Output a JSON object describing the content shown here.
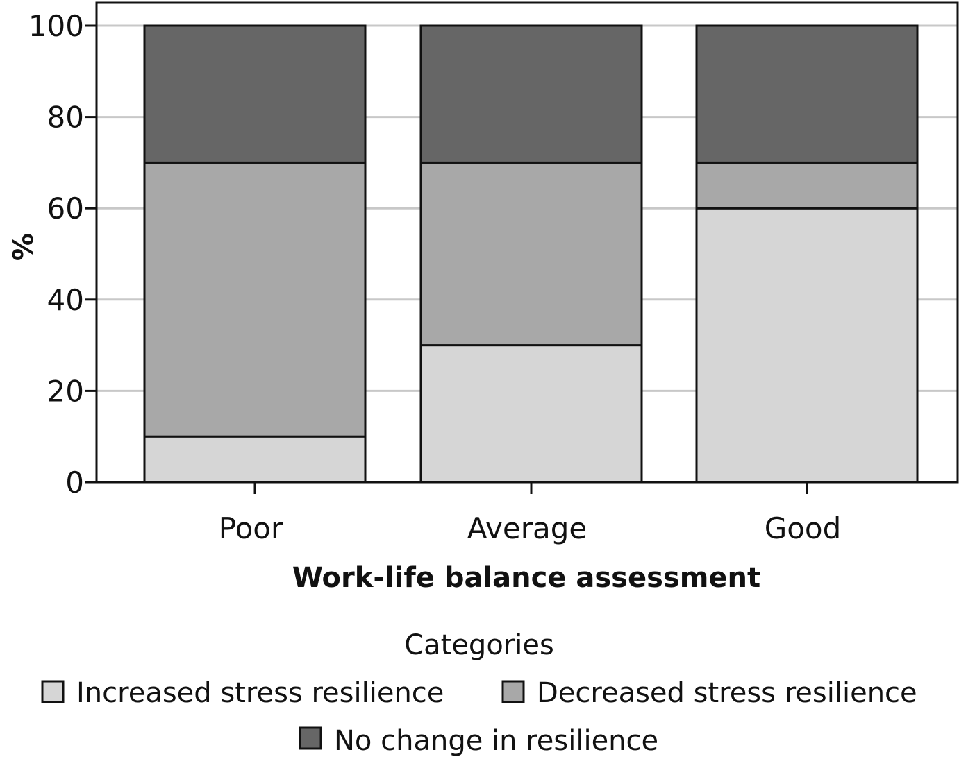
{
  "chart_data": {
    "type": "bar",
    "stacked": true,
    "categories": [
      "Poor",
      "Average",
      "Good"
    ],
    "series": [
      {
        "name": "Increased stress resilience",
        "color": "#d6d6d6",
        "values": [
          10,
          30,
          60
        ]
      },
      {
        "name": "Decreased stress resilience",
        "color": "#a8a8a8",
        "values": [
          60,
          40,
          10
        ]
      },
      {
        "name": "No change in resilience",
        "color": "#666666",
        "values": [
          30,
          30,
          30
        ]
      }
    ],
    "xlabel": "Work-life balance assessment",
    "ylabel": "%",
    "ylim": [
      0,
      100
    ],
    "yticks": [
      0,
      20,
      40,
      60,
      80,
      100
    ],
    "grid": true,
    "legend": {
      "title": "Categories",
      "placement": "bottom"
    }
  }
}
